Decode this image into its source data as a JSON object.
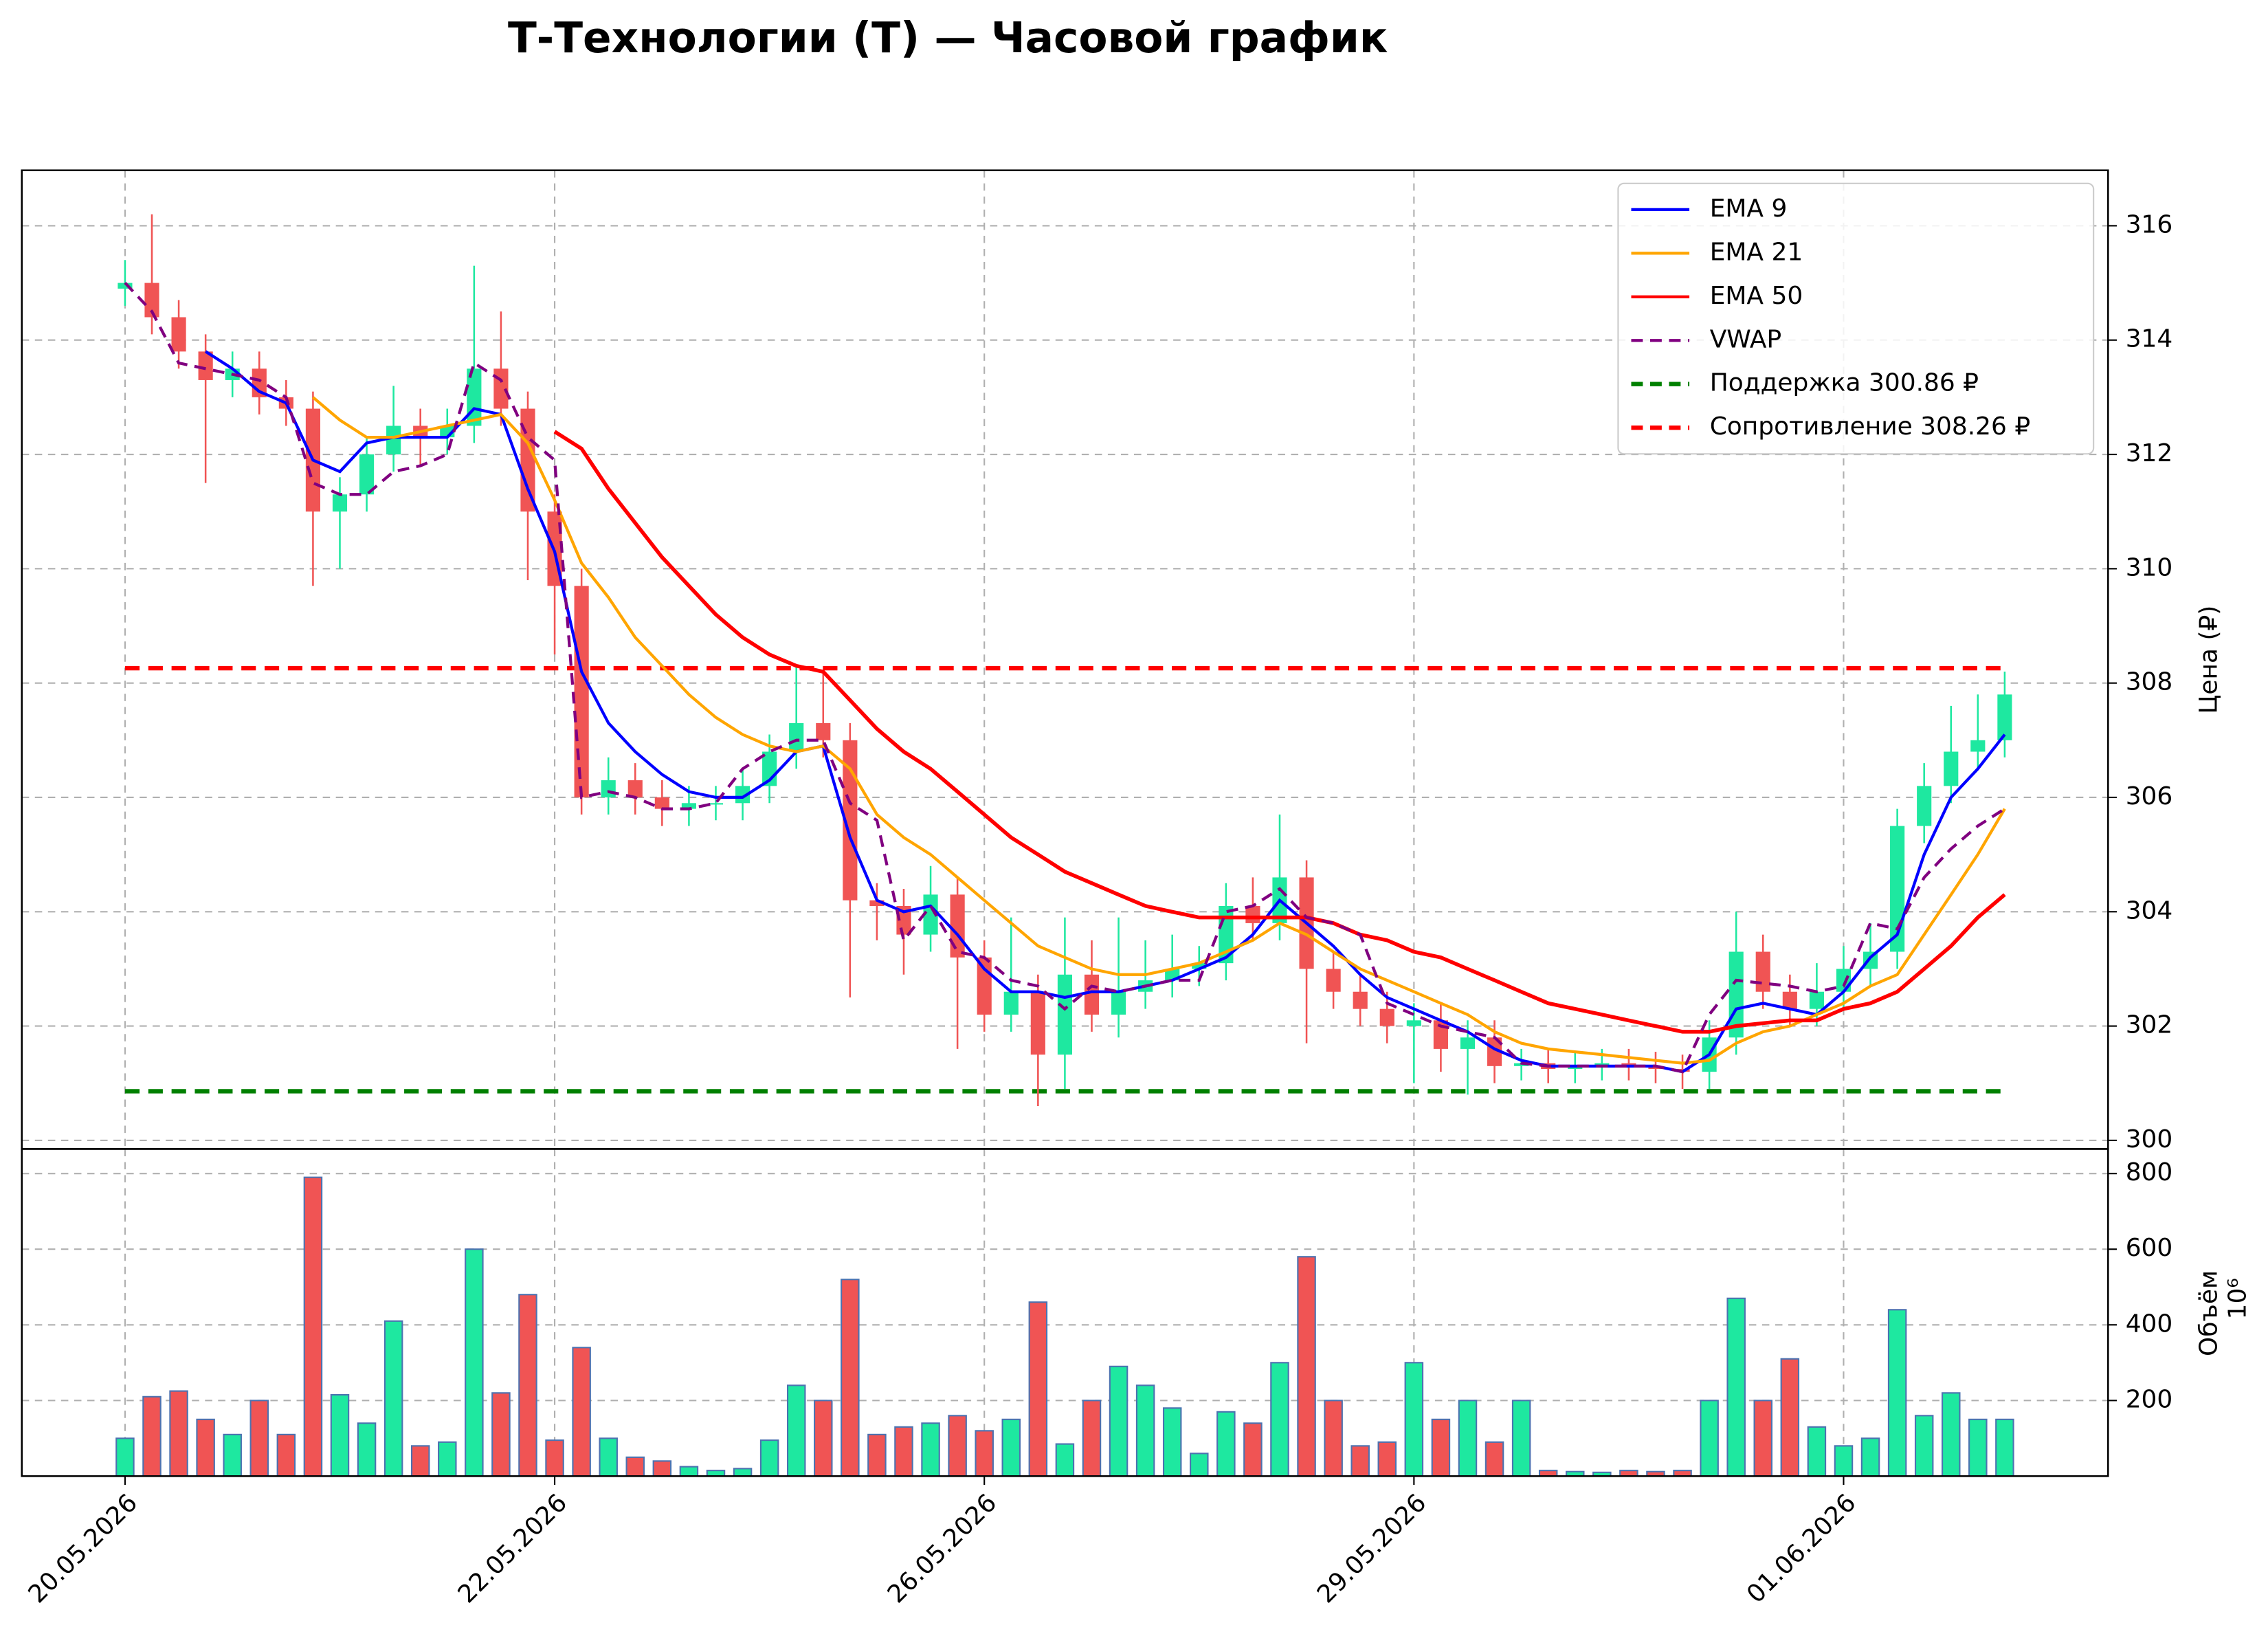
{
  "chart_data": {
    "type": "candlestick",
    "title": "Т-Технологии (T) — Часовой график",
    "categories": [
      "20.05.2026",
      null,
      null,
      null,
      null,
      null,
      null,
      null,
      null,
      null,
      null,
      null,
      null,
      null,
      null,
      null,
      "22.05.2026",
      null,
      null,
      null,
      null,
      null,
      null,
      null,
      null,
      null,
      null,
      null,
      null,
      null,
      null,
      null,
      "26.05.2026",
      null,
      null,
      null,
      null,
      null,
      null,
      null,
      null,
      null,
      null,
      null,
      null,
      null,
      null,
      null,
      "29.05.2026",
      null,
      null,
      null,
      null,
      null,
      null,
      null,
      null,
      null,
      null,
      null,
      null,
      null,
      null,
      null,
      "01.06.2026",
      null,
      null,
      null,
      null,
      null,
      null
    ],
    "open": [
      314.9,
      315.0,
      314.4,
      313.8,
      313.3,
      313.5,
      313.0,
      312.8,
      311.0,
      311.3,
      312.0,
      312.5,
      312.3,
      312.5,
      313.5,
      312.8,
      311.0,
      309.7,
      306.0,
      306.3,
      306.0,
      305.8,
      305.9,
      305.9,
      306.2,
      306.8,
      307.3,
      307.0,
      304.2,
      304.1,
      303.6,
      304.3,
      303.2,
      302.2,
      302.6,
      301.5,
      302.9,
      302.2,
      302.6,
      302.8,
      303.0,
      303.1,
      304.1,
      303.8,
      304.6,
      303.0,
      302.6,
      302.3,
      302.0,
      302.1,
      301.6,
      301.8,
      301.3,
      301.35,
      301.25,
      301.3,
      301.35,
      301.3,
      301.25,
      301.2,
      301.8,
      303.3,
      302.6,
      302.3,
      302.6,
      303.0,
      303.3,
      305.5,
      306.2,
      306.8,
      307.0
    ],
    "high": [
      315.4,
      316.2,
      314.7,
      314.1,
      313.8,
      313.8,
      313.3,
      313.1,
      311.6,
      312.3,
      313.2,
      312.8,
      312.8,
      315.3,
      314.5,
      313.1,
      311.3,
      310.0,
      306.7,
      306.6,
      306.3,
      306.2,
      306.2,
      306.5,
      307.1,
      308.3,
      308.2,
      307.3,
      304.5,
      304.4,
      304.8,
      304.6,
      303.5,
      303.9,
      302.9,
      303.9,
      303.5,
      303.9,
      303.5,
      303.6,
      303.4,
      304.5,
      304.6,
      305.7,
      304.9,
      303.3,
      302.9,
      302.6,
      302.4,
      302.4,
      302.1,
      302.1,
      301.6,
      301.6,
      301.55,
      301.6,
      301.6,
      301.55,
      301.5,
      302.1,
      304.0,
      303.6,
      302.9,
      303.1,
      303.4,
      303.8,
      305.8,
      306.6,
      307.6,
      307.8,
      308.2
    ],
    "low": [
      314.6,
      314.1,
      313.5,
      311.5,
      313.0,
      312.7,
      312.5,
      309.7,
      310.0,
      311.0,
      311.7,
      311.8,
      312.0,
      312.2,
      312.5,
      309.8,
      308.5,
      305.7,
      305.7,
      305.7,
      305.5,
      305.5,
      305.6,
      305.6,
      305.9,
      306.5,
      306.7,
      302.5,
      303.5,
      302.9,
      303.3,
      301.6,
      301.9,
      301.9,
      300.6,
      300.9,
      301.9,
      301.8,
      302.3,
      302.5,
      302.7,
      302.8,
      303.5,
      303.5,
      301.7,
      302.3,
      302.0,
      301.7,
      301.0,
      301.2,
      300.8,
      301.0,
      301.05,
      301.0,
      301.0,
      301.05,
      301.05,
      301.0,
      300.9,
      300.9,
      301.5,
      302.3,
      302.0,
      302.0,
      302.3,
      302.7,
      303.0,
      305.2,
      305.9,
      306.5,
      306.7
    ],
    "close": [
      315.0,
      314.4,
      313.8,
      313.3,
      313.5,
      313.0,
      312.8,
      311.0,
      311.3,
      312.0,
      312.5,
      312.3,
      312.5,
      313.5,
      312.8,
      311.0,
      309.7,
      306.0,
      306.3,
      306.0,
      305.8,
      305.9,
      305.9,
      306.2,
      306.8,
      307.3,
      307.0,
      304.2,
      304.1,
      303.6,
      304.3,
      303.2,
      302.2,
      302.6,
      301.5,
      302.9,
      302.2,
      302.6,
      302.8,
      303.0,
      303.1,
      304.1,
      303.8,
      304.6,
      303.0,
      302.6,
      302.3,
      302.0,
      302.1,
      301.6,
      301.8,
      301.3,
      301.35,
      301.25,
      301.3,
      301.35,
      301.3,
      301.25,
      301.2,
      301.8,
      303.3,
      302.6,
      302.3,
      302.6,
      303.0,
      303.3,
      305.5,
      306.2,
      306.8,
      307.0,
      307.8
    ],
    "up_color": "#1ee8a0",
    "down_color": "#f05454",
    "ylabel": "Цена (₽)",
    "ylim": [
      299.85,
      316.97
    ],
    "yticks": [
      300,
      302,
      304,
      306,
      308,
      310,
      312,
      314,
      316
    ],
    "lines": [
      {
        "name": "EMA 9",
        "color": "#0000ff",
        "style": "solid",
        "values": [
          null,
          null,
          null,
          313.8,
          313.5,
          313.1,
          312.9,
          311.9,
          311.7,
          312.2,
          312.3,
          312.3,
          312.3,
          312.8,
          312.7,
          311.4,
          310.3,
          308.2,
          307.3,
          306.8,
          306.4,
          306.1,
          306.0,
          306.0,
          306.3,
          306.8,
          306.9,
          305.3,
          304.2,
          304.0,
          304.1,
          303.6,
          303.0,
          302.6,
          302.6,
          302.5,
          302.6,
          302.6,
          302.7,
          302.8,
          303.0,
          303.2,
          303.6,
          304.2,
          303.8,
          303.4,
          302.9,
          302.5,
          302.3,
          302.1,
          301.9,
          301.6,
          301.4,
          301.3,
          301.3,
          301.3,
          301.3,
          301.3,
          301.2,
          301.5,
          302.3,
          302.4,
          302.3,
          302.2,
          302.6,
          303.2,
          303.6,
          305.0,
          306.0,
          306.5,
          307.1
        ]
      },
      {
        "name": "EMA 21",
        "color": "#ffa500",
        "style": "solid",
        "values": [
          null,
          null,
          null,
          null,
          null,
          null,
          null,
          313.0,
          312.6,
          312.3,
          312.3,
          312.4,
          312.5,
          312.6,
          312.7,
          312.2,
          311.2,
          310.1,
          309.5,
          308.8,
          308.3,
          307.8,
          307.4,
          307.1,
          306.9,
          306.8,
          306.9,
          306.5,
          305.7,
          305.3,
          305.0,
          304.6,
          304.2,
          303.8,
          303.4,
          303.2,
          303.0,
          302.9,
          302.9,
          303.0,
          303.1,
          303.3,
          303.5,
          303.8,
          303.6,
          303.3,
          303.0,
          302.8,
          302.6,
          302.4,
          302.2,
          301.9,
          301.7,
          301.6,
          301.55,
          301.5,
          301.45,
          301.4,
          301.35,
          301.4,
          301.7,
          301.9,
          302.0,
          302.2,
          302.4,
          302.7,
          302.9,
          303.6,
          304.3,
          305.0,
          305.8
        ]
      },
      {
        "name": "EMA 50",
        "color": "#ff0000",
        "style": "solid",
        "values": [
          null,
          null,
          null,
          null,
          null,
          null,
          null,
          null,
          null,
          null,
          null,
          null,
          null,
          null,
          null,
          null,
          312.4,
          312.1,
          311.4,
          310.8,
          310.2,
          309.7,
          309.2,
          308.8,
          308.5,
          308.3,
          308.2,
          307.7,
          307.2,
          306.8,
          306.5,
          306.1,
          305.7,
          305.3,
          305.0,
          304.7,
          304.5,
          304.3,
          304.1,
          304.0,
          303.9,
          303.9,
          303.9,
          303.9,
          303.9,
          303.8,
          303.6,
          303.5,
          303.3,
          303.2,
          303.0,
          302.8,
          302.6,
          302.4,
          302.3,
          302.2,
          302.1,
          302.0,
          301.9,
          301.9,
          302.0,
          302.05,
          302.1,
          302.1,
          302.3,
          302.4,
          302.6,
          303.0,
          303.4,
          303.9,
          304.3
        ]
      },
      {
        "name": "VWAP",
        "color": "#800080",
        "style": "dashed",
        "values": [
          315.0,
          314.5,
          313.6,
          313.5,
          313.4,
          313.3,
          313.0,
          311.5,
          311.3,
          311.3,
          311.7,
          311.8,
          312.0,
          313.6,
          313.3,
          312.3,
          311.9,
          306.0,
          306.1,
          306.0,
          305.8,
          305.8,
          305.9,
          306.5,
          306.8,
          307.0,
          307.0,
          305.9,
          305.6,
          303.5,
          304.1,
          303.3,
          303.2,
          302.8,
          302.7,
          302.3,
          302.7,
          302.6,
          302.7,
          302.8,
          302.8,
          304.0,
          304.1,
          304.4,
          303.9,
          303.8,
          303.6,
          302.4,
          302.2,
          302.0,
          301.9,
          301.8,
          301.35,
          301.3,
          301.3,
          301.3,
          301.3,
          301.3,
          301.2,
          302.2,
          302.8,
          302.75,
          302.7,
          302.6,
          302.7,
          303.8,
          303.7,
          304.6,
          305.1,
          305.5,
          305.8
        ]
      }
    ],
    "levels": [
      {
        "name": "Поддержка 300.86 ₽",
        "color": "#008000",
        "value": 300.86
      },
      {
        "name": "Сопротивление 308.26 ₽",
        "color": "#ff0000",
        "value": 308.26
      }
    ],
    "volume": {
      "ylabel": "Объём",
      "scale_label": "10⁶",
      "edge_color": "#4c72b0",
      "ylim": [
        0,
        865
      ],
      "yticks": [
        200,
        400,
        600,
        800
      ],
      "values": [
        100,
        210,
        225,
        150,
        110,
        200,
        110,
        790,
        215,
        140,
        410,
        80,
        90,
        600,
        220,
        480,
        95,
        340,
        100,
        50,
        40,
        25,
        15,
        20,
        95,
        240,
        200,
        520,
        110,
        130,
        140,
        160,
        120,
        150,
        460,
        85,
        200,
        290,
        240,
        180,
        60,
        170,
        140,
        300,
        580,
        200,
        80,
        90,
        300,
        150,
        200,
        90,
        200,
        15,
        12,
        10,
        15,
        12,
        15,
        200,
        470,
        200,
        310,
        130,
        80,
        100,
        440,
        160,
        220,
        150,
        150
      ]
    },
    "grid": true,
    "legend": "upper right"
  }
}
